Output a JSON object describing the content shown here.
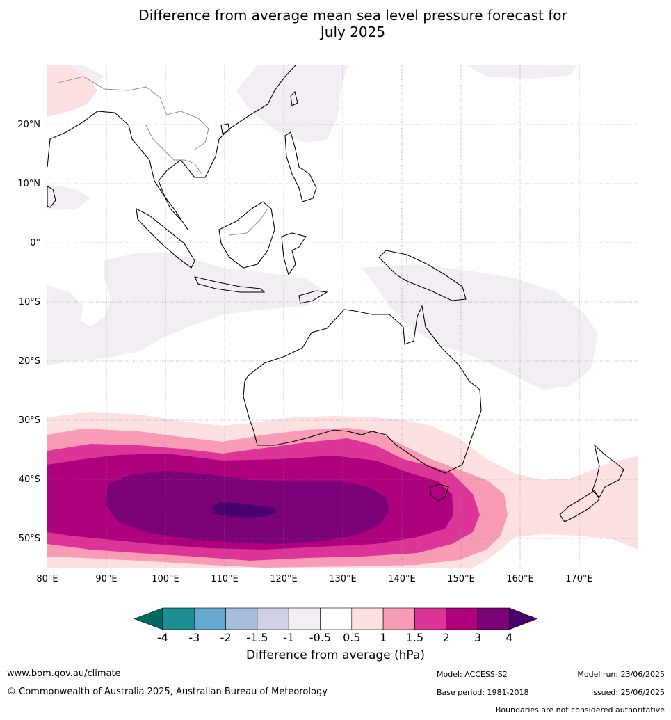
{
  "title_line1": "Difference from average mean sea level pressure forecast for",
  "title_line2": "July 2025",
  "lon_labels": [
    "80°E",
    "90°E",
    "100°E",
    "110°E",
    "120°E",
    "130°E",
    "140°E",
    "150°E",
    "160°E",
    "170°E"
  ],
  "lat_labels": [
    "20°N",
    "10°N",
    "0°",
    "10°S",
    "20°S",
    "30°S",
    "40°S",
    "50°S"
  ],
  "colorbar": {
    "title": "Difference from average (hPa)",
    "tick_labels": [
      "-4",
      "-3",
      "-2",
      "-1.5",
      "-1",
      "-0.5",
      "0.5",
      "1",
      "1.5",
      "2",
      "3",
      "4"
    ],
    "colors": [
      "#03695d",
      "#1c8f95",
      "#66a8cf",
      "#a6bddb",
      "#d0d1e6",
      "#f2eef4",
      "#ffffff",
      "#fde0e0",
      "#f89cb6",
      "#dd3497",
      "#ae017e",
      "#7a0177",
      "#49006a"
    ]
  },
  "regions": {
    "aus_p05": "#fde0e0",
    "aus_p1": "#f89cb6",
    "aus_p15": "#dd3497",
    "aus_p2": "#ae017e",
    "aus_p3": "#7a0177",
    "aus_p4": "#49006a",
    "neg05": "#f2eef4"
  },
  "footer": {
    "website": "www.bom.gov.au/climate",
    "copyright": "© Commonwealth of Australia 2025, Australian Bureau of Meteorology",
    "model": "Model: ACCESS-S2",
    "base_period": "Base period: 1981-2018",
    "model_run": "Model run: 23/06/2025",
    "issued": "Issued: 25/06/2025",
    "disclaimer": "Boundaries are not considered authoritative"
  }
}
